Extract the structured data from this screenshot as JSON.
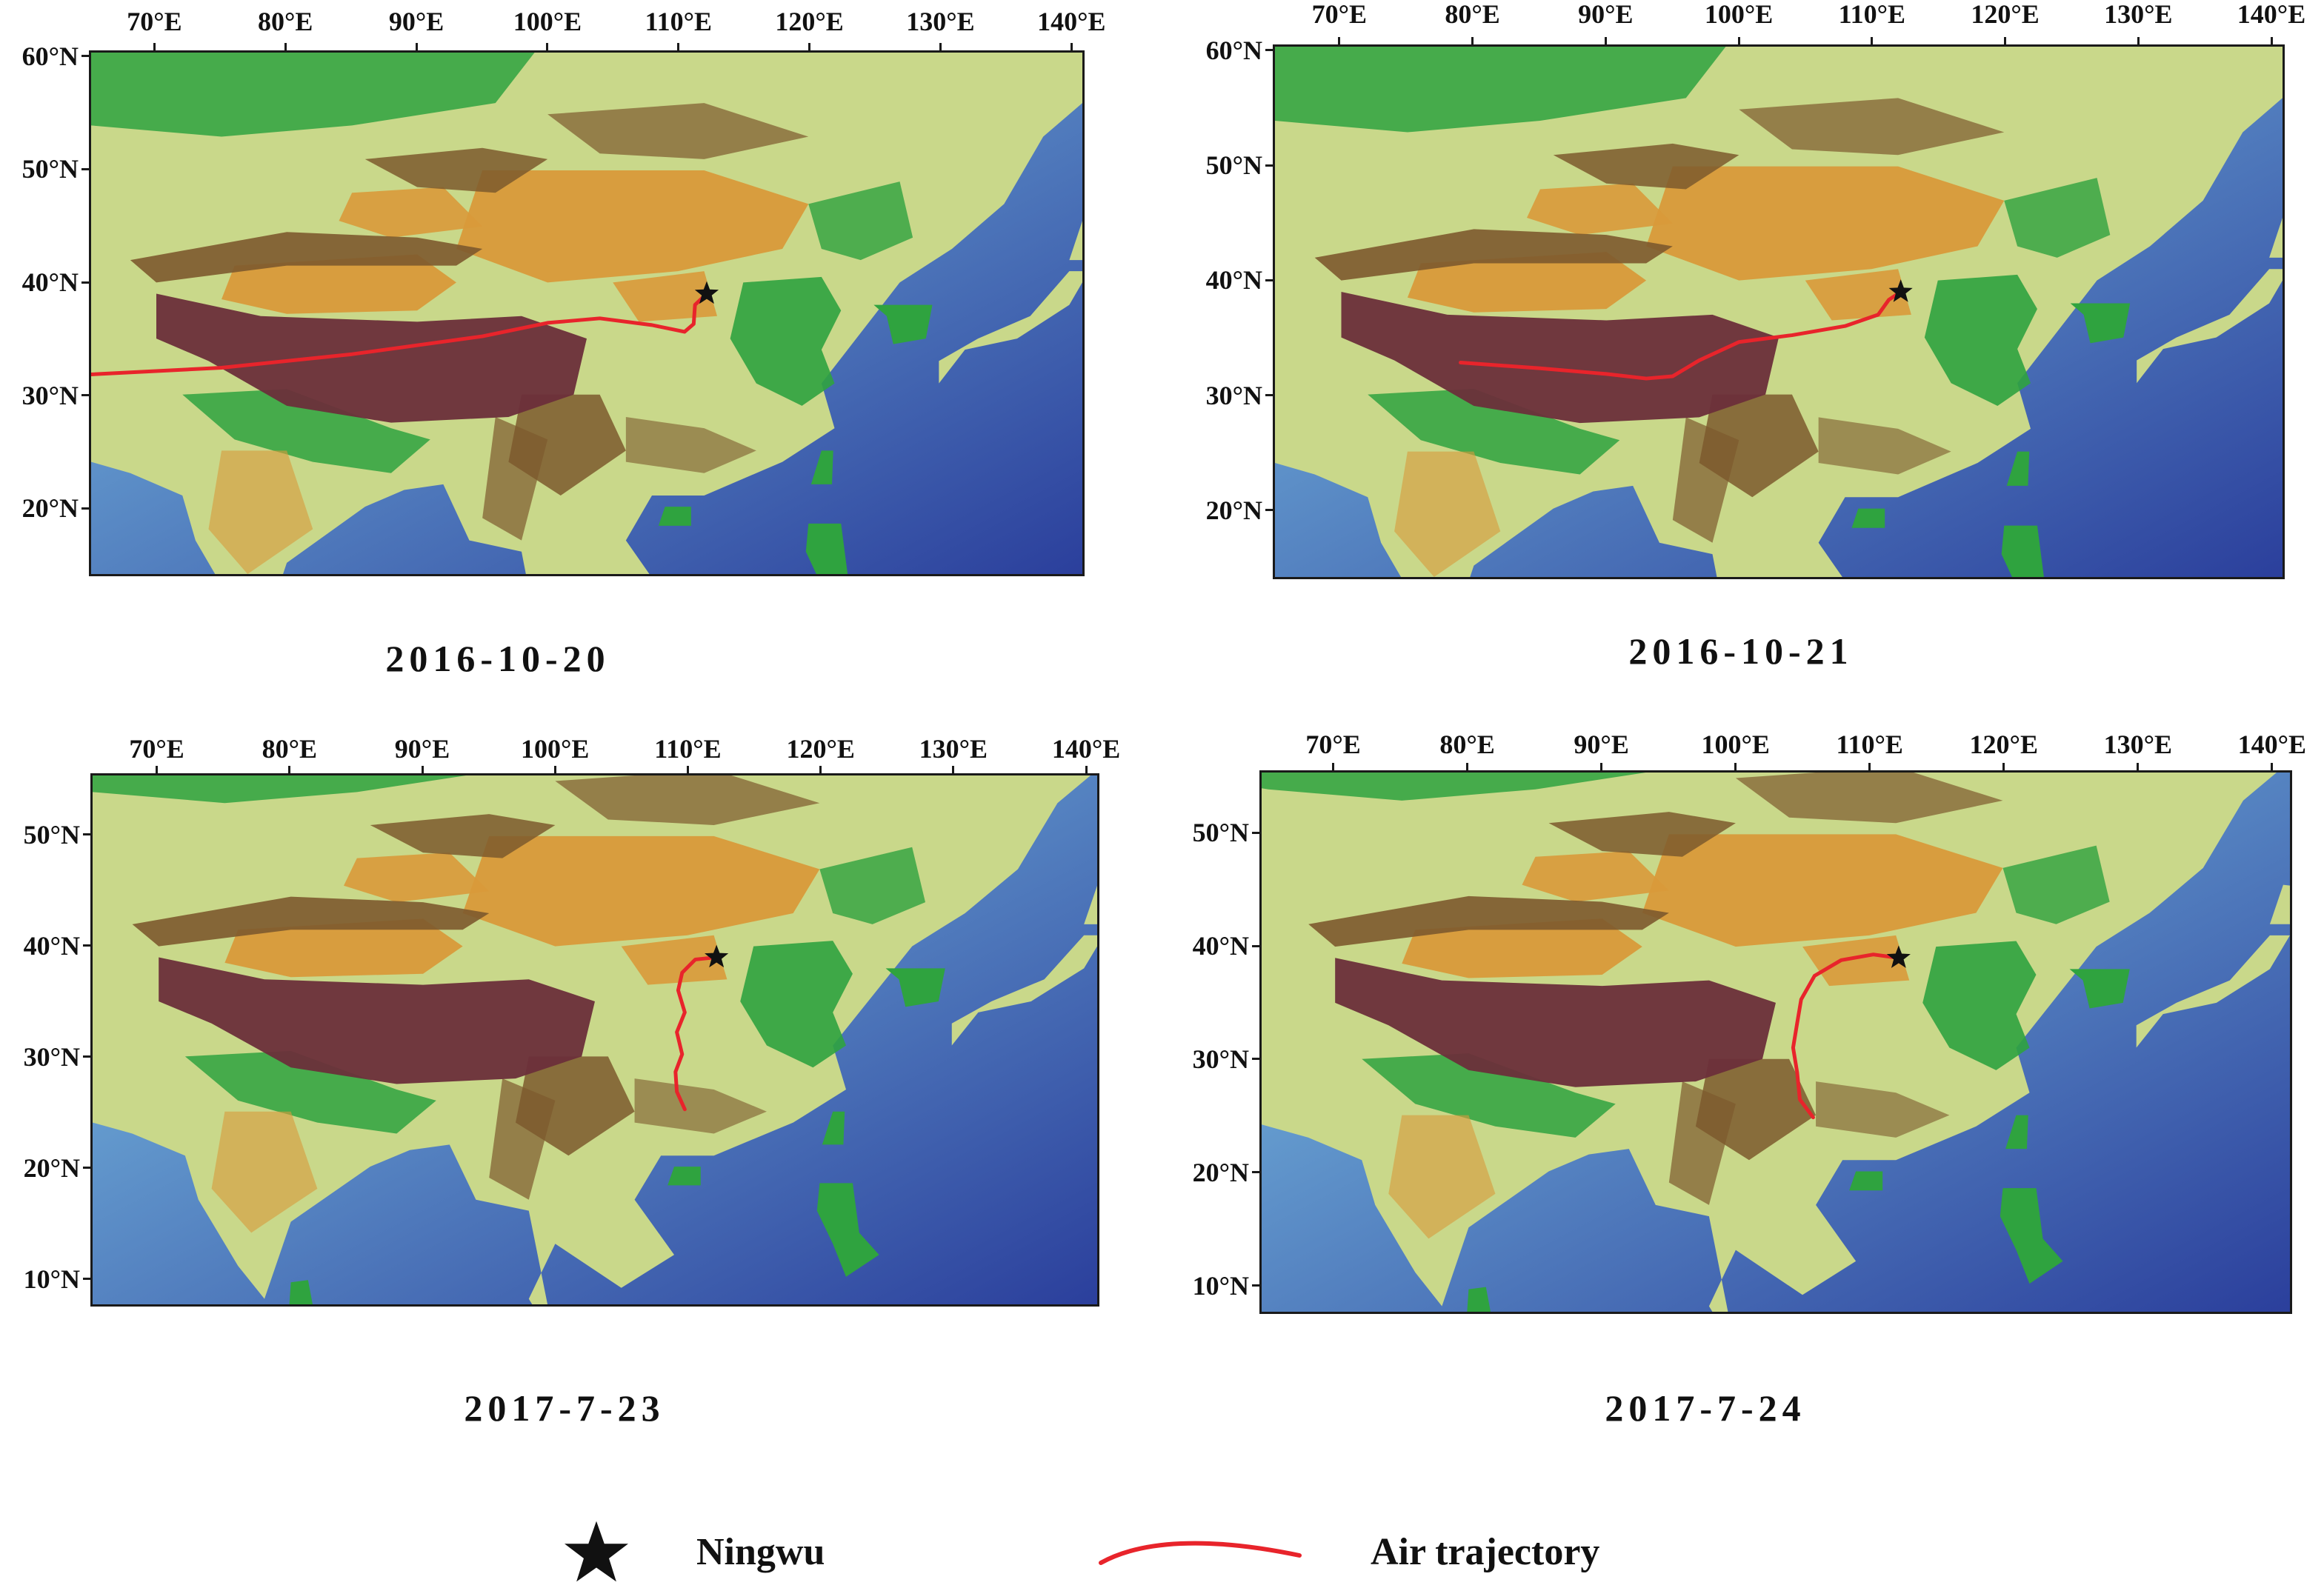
{
  "figure": {
    "panels": [
      {
        "date": "2016-10-20",
        "lon_labels": [
          "70°E",
          "80°E",
          "90°E",
          "100°E",
          "110°E",
          "120°E",
          "130°E",
          "140°E"
        ],
        "lat_labels": [
          "60°N",
          "50°N",
          "40°N",
          "30°N",
          "20°N"
        ],
        "lon_range": [
          65,
          141
        ],
        "lat_range": [
          14,
          60.5
        ],
        "site": {
          "name": "Ningwu",
          "lon": 112.2,
          "lat": 39.0
        },
        "trajectory": [
          [
            65,
            31.8
          ],
          [
            75,
            32.4
          ],
          [
            85,
            33.6
          ],
          [
            95,
            35.2
          ],
          [
            100,
            36.4
          ],
          [
            104,
            36.8
          ],
          [
            108,
            36.2
          ],
          [
            110.5,
            35.6
          ],
          [
            111.2,
            36.3
          ],
          [
            111.3,
            38.0
          ],
          [
            112.2,
            39.0
          ]
        ]
      },
      {
        "date": "2016-10-21",
        "lon_labels": [
          "70°E",
          "80°E",
          "90°E",
          "100°E",
          "110°E",
          "120°E",
          "130°E",
          "140°E"
        ],
        "lat_labels": [
          "60°N",
          "50°N",
          "40°N",
          "30°N",
          "20°N"
        ],
        "lon_range": [
          65,
          141
        ],
        "lat_range": [
          14,
          60.5
        ],
        "site": {
          "name": "Ningwu",
          "lon": 112.2,
          "lat": 39.0
        },
        "trajectory": [
          [
            79,
            32.8
          ],
          [
            85,
            32.3
          ],
          [
            90,
            31.8
          ],
          [
            93,
            31.4
          ],
          [
            95,
            31.6
          ],
          [
            97,
            33.0
          ],
          [
            100,
            34.6
          ],
          [
            104,
            35.2
          ],
          [
            108,
            36.0
          ],
          [
            110.5,
            37.0
          ],
          [
            111.3,
            38.3
          ],
          [
            112.2,
            39.0
          ]
        ]
      },
      {
        "date": "2017-7-23",
        "lon_labels": [
          "70°E",
          "80°E",
          "90°E",
          "100°E",
          "110°E",
          "120°E",
          "130°E",
          "140°E"
        ],
        "lat_labels": [
          "50°N",
          "40°N",
          "30°N",
          "20°N",
          "10°N"
        ],
        "lon_range": [
          65,
          141
        ],
        "lat_range": [
          7.5,
          55.5
        ],
        "site": {
          "name": "Ningwu",
          "lon": 112.2,
          "lat": 39.0
        },
        "trajectory": [
          [
            109.8,
            25.2
          ],
          [
            109.2,
            26.8
          ],
          [
            109.1,
            28.6
          ],
          [
            109.6,
            30.2
          ],
          [
            109.2,
            32.2
          ],
          [
            109.8,
            34.0
          ],
          [
            109.3,
            36.0
          ],
          [
            109.6,
            37.6
          ],
          [
            110.6,
            38.8
          ],
          [
            112.2,
            39.0
          ]
        ]
      },
      {
        "date": "2017-7-24",
        "lon_labels": [
          "70°E",
          "80°E",
          "90°E",
          "100°E",
          "110°E",
          "120°E",
          "130°E",
          "140°E"
        ],
        "lat_labels": [
          "50°N",
          "40°N",
          "30°N",
          "20°N",
          "10°N"
        ],
        "lon_range": [
          64.5,
          141.5
        ],
        "lat_range": [
          7.5,
          55.5
        ],
        "site": {
          "name": "Ningwu",
          "lon": 112.2,
          "lat": 39.0
        },
        "trajectory": [
          [
            105.8,
            24.8
          ],
          [
            104.8,
            26.4
          ],
          [
            104.6,
            28.8
          ],
          [
            104.3,
            31.0
          ],
          [
            104.6,
            33.2
          ],
          [
            104.9,
            35.3
          ],
          [
            105.9,
            37.4
          ],
          [
            107.9,
            38.8
          ],
          [
            110.3,
            39.3
          ],
          [
            112.2,
            39.0
          ]
        ]
      }
    ],
    "legend": {
      "site_label": "Ningwu",
      "trajectory_label": "Air trajectory"
    },
    "colors": {
      "trajectory": "#e8242b",
      "marker": "#111111",
      "ocean_deep": "#2b3f9c",
      "ocean_shallow": "#7fc7e6",
      "lowland": "#2fa33f",
      "plain": "#c9d88a",
      "desert": "#d99a3a",
      "mountain": "#7d5a2d",
      "plateau": "#6b2f3a"
    }
  }
}
